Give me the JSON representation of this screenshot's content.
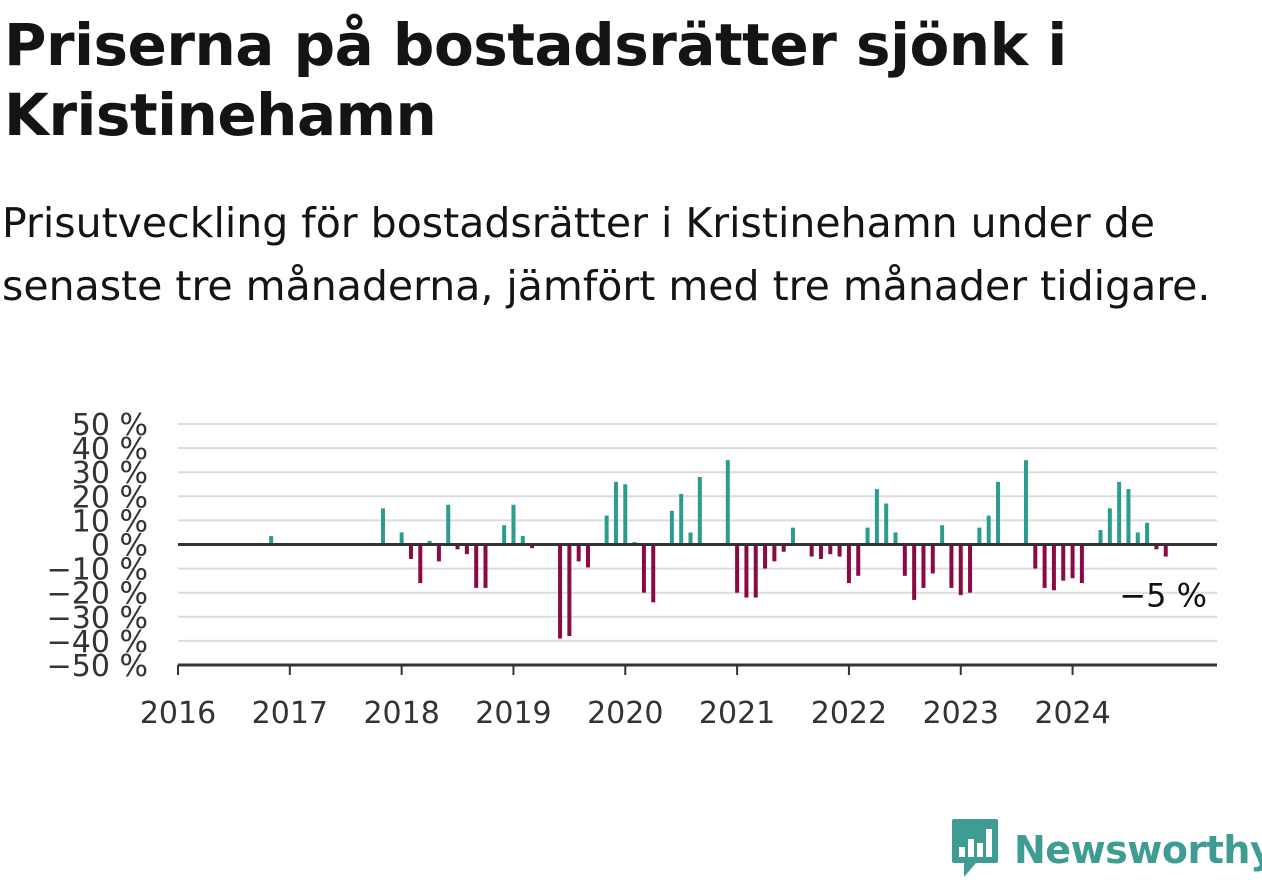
{
  "title": "Priserna på bostadsrätter sjönk i Kristinehamn",
  "subtitle": "Prisutveckling för bostadsrätter i Kristinehamn under de senaste tre månaderna, jämfört med tre månader tidigare.",
  "brand": {
    "name": "Newsworthy",
    "color": "#3f9c93",
    "icon": "bar-chart-speech-bubble-icon"
  },
  "chart_data": {
    "type": "bar",
    "x_unit": "month index (0 = Jan 2016)",
    "x_ticks": [
      {
        "x": 0,
        "label": "2016"
      },
      {
        "x": 12,
        "label": "2017"
      },
      {
        "x": 24,
        "label": "2018"
      },
      {
        "x": 36,
        "label": "2019"
      },
      {
        "x": 48,
        "label": "2020"
      },
      {
        "x": 60,
        "label": "2021"
      },
      {
        "x": 72,
        "label": "2022"
      },
      {
        "x": 84,
        "label": "2023"
      },
      {
        "x": 96,
        "label": "2024"
      }
    ],
    "y_ticks": [
      50,
      40,
      30,
      20,
      10,
      0,
      -10,
      -20,
      -30,
      -40,
      -50
    ],
    "y_tick_labels": [
      "50 %",
      "40 %",
      "30 %",
      "20 %",
      "10 %",
      "0 %",
      "−10 %",
      "−20 %",
      "−30 %",
      "−40 %",
      "−50 %"
    ],
    "ylim": [
      -50,
      50
    ],
    "xlim": [
      0,
      111.5
    ],
    "grid": true,
    "positive_color": "#2a9d8f",
    "negative_color": "#8b0a45",
    "points": [
      {
        "x": 10,
        "y": 3.5
      },
      {
        "x": 22,
        "y": 15
      },
      {
        "x": 24,
        "y": 5
      },
      {
        "x": 25,
        "y": -6
      },
      {
        "x": 26,
        "y": -16
      },
      {
        "x": 27,
        "y": 1.5
      },
      {
        "x": 28,
        "y": -7
      },
      {
        "x": 29,
        "y": 16.5
      },
      {
        "x": 30,
        "y": -2
      },
      {
        "x": 31,
        "y": -4
      },
      {
        "x": 32,
        "y": -18
      },
      {
        "x": 33,
        "y": -18
      },
      {
        "x": 34,
        "y": -0.5
      },
      {
        "x": 35,
        "y": 8
      },
      {
        "x": 36,
        "y": 16.5
      },
      {
        "x": 37,
        "y": 3.5
      },
      {
        "x": 38,
        "y": -1.5
      },
      {
        "x": 41,
        "y": -39
      },
      {
        "x": 42,
        "y": -38
      },
      {
        "x": 43,
        "y": -7
      },
      {
        "x": 44,
        "y": -9.5
      },
      {
        "x": 46,
        "y": 12
      },
      {
        "x": 47,
        "y": 26
      },
      {
        "x": 48,
        "y": 25
      },
      {
        "x": 49,
        "y": 1
      },
      {
        "x": 50,
        "y": -20
      },
      {
        "x": 51,
        "y": -24
      },
      {
        "x": 53,
        "y": 14
      },
      {
        "x": 54,
        "y": 21
      },
      {
        "x": 55,
        "y": 5
      },
      {
        "x": 56,
        "y": 28
      },
      {
        "x": 59,
        "y": 35
      },
      {
        "x": 60,
        "y": -20
      },
      {
        "x": 61,
        "y": -22
      },
      {
        "x": 62,
        "y": -22
      },
      {
        "x": 63,
        "y": -10
      },
      {
        "x": 64,
        "y": -7
      },
      {
        "x": 65,
        "y": -3
      },
      {
        "x": 66,
        "y": 7
      },
      {
        "x": 68,
        "y": -5
      },
      {
        "x": 69,
        "y": -6
      },
      {
        "x": 70,
        "y": -4
      },
      {
        "x": 71,
        "y": -5
      },
      {
        "x": 72,
        "y": -16
      },
      {
        "x": 73,
        "y": -13
      },
      {
        "x": 74,
        "y": 7
      },
      {
        "x": 75,
        "y": 23
      },
      {
        "x": 76,
        "y": 17
      },
      {
        "x": 77,
        "y": 5
      },
      {
        "x": 78,
        "y": -13
      },
      {
        "x": 79,
        "y": -23
      },
      {
        "x": 80,
        "y": -18
      },
      {
        "x": 81,
        "y": -12
      },
      {
        "x": 82,
        "y": 8
      },
      {
        "x": 83,
        "y": -18
      },
      {
        "x": 84,
        "y": -21
      },
      {
        "x": 85,
        "y": -20
      },
      {
        "x": 86,
        "y": 7
      },
      {
        "x": 87,
        "y": 12
      },
      {
        "x": 88,
        "y": 26
      },
      {
        "x": 91,
        "y": 35
      },
      {
        "x": 92,
        "y": -10
      },
      {
        "x": 93,
        "y": -18
      },
      {
        "x": 94,
        "y": -19
      },
      {
        "x": 95,
        "y": -15
      },
      {
        "x": 96,
        "y": -14
      },
      {
        "x": 97,
        "y": -16
      },
      {
        "x": 99,
        "y": 6
      },
      {
        "x": 100,
        "y": 15
      },
      {
        "x": 101,
        "y": 26
      },
      {
        "x": 102,
        "y": 23
      },
      {
        "x": 103,
        "y": 5
      },
      {
        "x": 104,
        "y": 9
      },
      {
        "x": 105,
        "y": -2
      },
      {
        "x": 106,
        "y": -5
      }
    ],
    "annotation": {
      "x": 106,
      "y": -5,
      "label": "−5 %"
    }
  }
}
